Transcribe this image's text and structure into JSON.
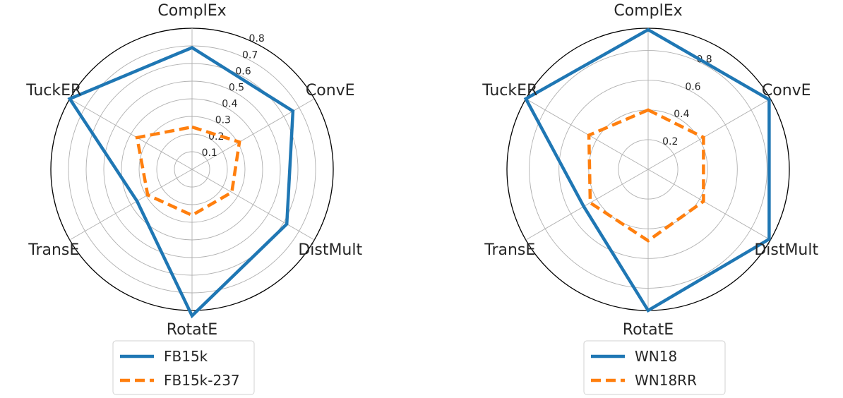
{
  "chart_data": [
    {
      "type": "radar",
      "axes": [
        "ComplEx",
        "ConvE",
        "DistMult",
        "RotatE",
        "TransE",
        "TuckER"
      ],
      "rmax": 0.8,
      "ticks": [
        0.1,
        0.2,
        0.3,
        0.4,
        0.5,
        0.6,
        0.7,
        0.8
      ],
      "tick_labels": [
        "0.1",
        "0.2",
        "0.3",
        "0.4",
        "0.5",
        "0.6",
        "0.7",
        "0.8"
      ],
      "grid": true,
      "legend_position": "bottom",
      "series": [
        {
          "name": "FB15k",
          "color": "#1f77b4",
          "dash": "solid",
          "values": [
            0.69,
            0.66,
            0.62,
            0.83,
            0.36,
            0.8
          ]
        },
        {
          "name": "FB15k-237",
          "color": "#ff7f0e",
          "dash": "dashed",
          "values": [
            0.24,
            0.31,
            0.26,
            0.26,
            0.29,
            0.36
          ]
        }
      ]
    },
    {
      "type": "radar",
      "axes": [
        "ComplEx",
        "ConvE",
        "DistMult",
        "RotatE",
        "TransE",
        "TuckER"
      ],
      "rmax": 0.95,
      "ticks": [
        0.2,
        0.4,
        0.6,
        0.8
      ],
      "tick_labels": [
        "0.2",
        "0.4",
        "0.6",
        "0.8"
      ],
      "grid": true,
      "legend_position": "bottom",
      "series": [
        {
          "name": "WN18",
          "color": "#1f77b4",
          "dash": "solid",
          "values": [
            0.94,
            0.94,
            0.94,
            0.95,
            0.5,
            0.95
          ]
        },
        {
          "name": "WN18RR",
          "color": "#ff7f0e",
          "dash": "dashed",
          "values": [
            0.4,
            0.43,
            0.43,
            0.48,
            0.45,
            0.46
          ]
        }
      ]
    }
  ]
}
